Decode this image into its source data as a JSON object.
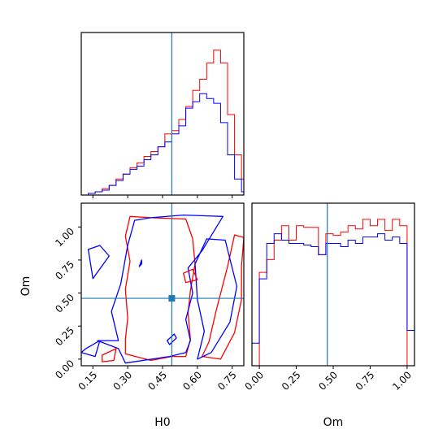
{
  "chart_data": {
    "type": "corner-plot",
    "parameters": [
      "H0",
      "Om"
    ],
    "truth": {
      "H0": 0.49,
      "Om": 0.46
    },
    "series": [
      {
        "color": "#ff0000"
      },
      {
        "color": "#0000ff"
      }
    ],
    "marginal_H0": {
      "xlim": [
        0.1,
        0.8
      ],
      "bin_edges": [
        0.1,
        0.13,
        0.16,
        0.19,
        0.22,
        0.25,
        0.28,
        0.31,
        0.34,
        0.37,
        0.4,
        0.43,
        0.46,
        0.49,
        0.52,
        0.55,
        0.58,
        0.61,
        0.64,
        0.67,
        0.7,
        0.73,
        0.76,
        0.79,
        0.82
      ],
      "red": [
        0.0,
        0.01,
        0.02,
        0.04,
        0.06,
        0.1,
        0.13,
        0.17,
        0.2,
        0.24,
        0.27,
        0.3,
        0.38,
        0.4,
        0.47,
        0.55,
        0.65,
        0.72,
        0.82,
        0.9,
        0.82,
        0.5,
        0.25,
        0.1
      ],
      "blue": [
        0.0,
        0.01,
        0.02,
        0.03,
        0.06,
        0.09,
        0.13,
        0.16,
        0.18,
        0.22,
        0.25,
        0.3,
        0.33,
        0.38,
        0.43,
        0.54,
        0.58,
        0.63,
        0.6,
        0.57,
        0.45,
        0.25,
        0.1,
        0.02
      ]
    },
    "marginal_Om": {
      "xlim": [
        -0.05,
        1.05
      ],
      "xticks": [
        "0.00",
        "0.25",
        "0.50",
        "0.75",
        "1.00"
      ],
      "red": [
        [
          -0.05,
          0.0
        ],
        [
          0.0,
          0.58
        ],
        [
          0.05,
          0.66
        ],
        [
          0.1,
          0.78
        ],
        [
          0.15,
          0.87
        ],
        [
          0.2,
          0.78
        ],
        [
          0.25,
          0.87
        ],
        [
          0.3,
          0.86
        ],
        [
          0.35,
          0.86
        ],
        [
          0.4,
          0.69
        ],
        [
          0.45,
          0.82
        ],
        [
          0.5,
          0.81
        ],
        [
          0.55,
          0.83
        ],
        [
          0.6,
          0.87
        ],
        [
          0.65,
          0.85
        ],
        [
          0.7,
          0.91
        ],
        [
          0.75,
          0.87
        ],
        [
          0.8,
          0.91
        ],
        [
          0.85,
          0.84
        ],
        [
          0.9,
          0.91
        ],
        [
          0.95,
          0.87
        ],
        [
          1.0,
          0.0
        ],
        [
          1.05,
          0.0
        ]
      ],
      "blue": [
        [
          -0.05,
          0.14
        ],
        [
          0.0,
          0.54
        ],
        [
          0.05,
          0.76
        ],
        [
          0.1,
          0.82
        ],
        [
          0.15,
          0.78
        ],
        [
          0.2,
          0.76
        ],
        [
          0.25,
          0.76
        ],
        [
          0.3,
          0.75
        ],
        [
          0.35,
          0.74
        ],
        [
          0.4,
          0.69
        ],
        [
          0.45,
          0.76
        ],
        [
          0.5,
          0.76
        ],
        [
          0.55,
          0.74
        ],
        [
          0.6,
          0.78
        ],
        [
          0.65,
          0.76
        ],
        [
          0.7,
          0.8
        ],
        [
          0.75,
          0.8
        ],
        [
          0.8,
          0.82
        ],
        [
          0.85,
          0.78
        ],
        [
          0.9,
          0.8
        ],
        [
          0.95,
          0.76
        ],
        [
          1.0,
          0.22
        ],
        [
          1.05,
          0.02
        ]
      ]
    },
    "joint": {
      "xlim": [
        0.1,
        0.8
      ],
      "ylim": [
        -0.05,
        1.18
      ],
      "xticks": [
        "0.15",
        "0.30",
        "0.45",
        "0.60",
        "0.75"
      ],
      "yticks": [
        "0.00",
        "0.25",
        "0.50",
        "0.75",
        "1.00"
      ],
      "contours": [
        {
          "color": "#ff0000",
          "points": [
            [
              0.29,
              0.04
            ],
            [
              0.4,
              -0.01
            ],
            [
              0.49,
              0.02
            ],
            [
              0.55,
              0.02
            ],
            [
              0.57,
              0.15
            ],
            [
              0.56,
              0.35
            ],
            [
              0.57,
              0.52
            ],
            [
              0.59,
              0.72
            ],
            [
              0.58,
              0.91
            ],
            [
              0.55,
              1.06
            ],
            [
              0.4,
              1.07
            ],
            [
              0.31,
              1.08
            ],
            [
              0.29,
              0.93
            ],
            [
              0.31,
              0.74
            ],
            [
              0.29,
              0.53
            ],
            [
              0.3,
              0.31
            ],
            [
              0.29,
              0.15
            ]
          ]
        },
        {
          "color": "#0000ff",
          "points": [
            [
              0.17,
              0.14
            ],
            [
              0.26,
              0.08
            ],
            [
              0.29,
              -0.03
            ],
            [
              0.48,
              0.02
            ],
            [
              0.55,
              0.05
            ],
            [
              0.57,
              0.14
            ],
            [
              0.55,
              0.3
            ],
            [
              0.58,
              0.5
            ],
            [
              0.56,
              0.69
            ],
            [
              0.62,
              0.82
            ],
            [
              0.71,
              1.08
            ],
            [
              0.54,
              1.09
            ],
            [
              0.4,
              1.07
            ],
            [
              0.33,
              1.05
            ],
            [
              0.3,
              0.86
            ],
            [
              0.27,
              0.57
            ],
            [
              0.23,
              0.36
            ],
            [
              0.26,
              0.14
            ]
          ]
        },
        {
          "color": "#ff0000",
          "points": [
            [
              0.62,
              0.02
            ],
            [
              0.7,
              0.0
            ],
            [
              0.76,
              0.2
            ],
            [
              0.79,
              0.45
            ],
            [
              0.79,
              0.7
            ],
            [
              0.8,
              0.92
            ],
            [
              0.76,
              0.94
            ],
            [
              0.73,
              0.7
            ],
            [
              0.68,
              0.36
            ],
            [
              0.65,
              0.13
            ]
          ]
        },
        {
          "color": "#0000ff",
          "points": [
            [
              0.6,
              0.0
            ],
            [
              0.66,
              0.05
            ],
            [
              0.74,
              0.28
            ],
            [
              0.77,
              0.55
            ],
            [
              0.72,
              0.9
            ],
            [
              0.64,
              0.91
            ],
            [
              0.59,
              0.72
            ],
            [
              0.6,
              0.45
            ],
            [
              0.63,
              0.21
            ]
          ]
        },
        {
          "color": "#ff0000",
          "points": [
            [
              0.55,
              0.58
            ],
            [
              0.6,
              0.6
            ],
            [
              0.58,
              0.68
            ],
            [
              0.54,
              0.65
            ]
          ]
        },
        {
          "color": "#0000ff",
          "points": [
            [
              0.15,
              0.61
            ],
            [
              0.22,
              0.78
            ],
            [
              0.18,
              0.86
            ],
            [
              0.13,
              0.83
            ]
          ]
        },
        {
          "color": "#0000ff",
          "points": [
            [
              0.12,
              0.08
            ],
            [
              0.18,
              0.14
            ],
            [
              0.16,
              0.02
            ],
            [
              0.1,
              0.05
            ]
          ]
        },
        {
          "color": "#ff0000",
          "points": [
            [
              0.19,
              0.03
            ],
            [
              0.25,
              0.08
            ],
            [
              0.24,
              -0.01
            ],
            [
              0.19,
              -0.02
            ]
          ]
        },
        {
          "color": "#0000ff",
          "points": [
            [
              0.48,
              0.11
            ],
            [
              0.51,
              0.16
            ],
            [
              0.5,
              0.19
            ],
            [
              0.47,
              0.14
            ]
          ]
        },
        {
          "color": "#0000ff",
          "points": [
            [
              0.35,
              0.7
            ],
            [
              0.36,
              0.75
            ],
            [
              0.36,
              0.72
            ]
          ]
        }
      ]
    },
    "xlabels": [
      "H0",
      "Om"
    ],
    "ylabels": [
      "Om"
    ]
  }
}
